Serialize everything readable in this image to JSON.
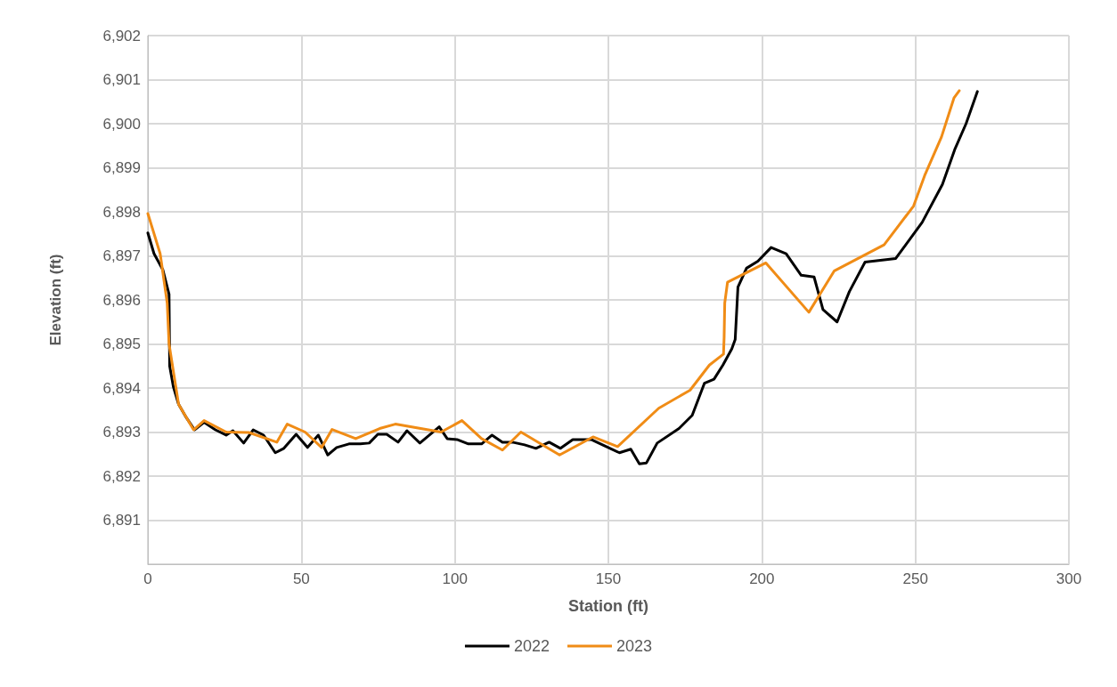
{
  "chart_data": {
    "type": "line",
    "xlabel": "Station (ft)",
    "ylabel": "Elevation (ft)",
    "xlim": [
      0,
      300
    ],
    "xticks": [
      0,
      50,
      100,
      150,
      200,
      250,
      300
    ],
    "ylim": [
      6890,
      6902
    ],
    "yticks": [
      {
        "value": 6890,
        "label": null
      },
      {
        "value": 6891,
        "label": "6,891"
      },
      {
        "value": 6892,
        "label": "6,892"
      },
      {
        "value": 6893,
        "label": "6,893"
      },
      {
        "value": 6894,
        "label": "6,894"
      },
      {
        "value": 6895,
        "label": "6,895"
      },
      {
        "value": 6896,
        "label": "6,896"
      },
      {
        "value": 6897,
        "label": "6,897"
      },
      {
        "value": 6898,
        "label": "6,898"
      },
      {
        "value": 6899,
        "label": "6,899"
      },
      {
        "value": 6900,
        "label": "6,900"
      },
      {
        "value": 6901,
        "label": "6,901"
      },
      {
        "value": 6902,
        "label": "6,902"
      }
    ],
    "grid": true,
    "legend": "bottom",
    "marker": "none",
    "line_style": "solid",
    "series": [
      {
        "name": "2022",
        "color": "#000000",
        "x": [
          0,
          2.0,
          4.9,
          6.9,
          7.1,
          8.3,
          10.0,
          12.6,
          15.2,
          18.3,
          22.0,
          25.5,
          27.7,
          31.2,
          34.3,
          37.7,
          41.5,
          44.3,
          48.3,
          52.0,
          55.5,
          58.6,
          61.5,
          65.5,
          69.2,
          72.1,
          74.9,
          77.8,
          81.5,
          84.4,
          88.6,
          94.9,
          97.5,
          100.7,
          104.4,
          108.7,
          112.1,
          115.5,
          118.7,
          122.7,
          126.4,
          130.7,
          134.4,
          138.4,
          144.4,
          148.7,
          153.6,
          157.3,
          160.1,
          162.4,
          165.9,
          173.0,
          177.3,
          181.3,
          184.4,
          187.3,
          190.2,
          191.3,
          192.2,
          195.0,
          198.7,
          203.0,
          207.9,
          212.8,
          217.0,
          219.9,
          224.5,
          228.5,
          233.6,
          243.6,
          252.2,
          258.8,
          262.8,
          266.5,
          270.2
        ],
        "values": [
          6897.52,
          6897.05,
          6896.68,
          6896.13,
          6894.5,
          6894.03,
          6893.63,
          6893.32,
          6893.05,
          6893.22,
          6893.05,
          6892.93,
          6893.03,
          6892.75,
          6893.05,
          6892.93,
          6892.53,
          6892.63,
          6892.95,
          6892.65,
          6892.93,
          6892.48,
          6892.65,
          6892.73,
          6892.73,
          6892.75,
          6892.95,
          6892.95,
          6892.77,
          6893.03,
          6892.75,
          6893.12,
          6892.85,
          6892.83,
          6892.73,
          6892.73,
          6892.93,
          6892.77,
          6892.77,
          6892.71,
          6892.63,
          6892.77,
          6892.63,
          6892.83,
          6892.83,
          6892.69,
          6892.53,
          6892.61,
          6892.28,
          6892.3,
          6892.75,
          6893.08,
          6893.38,
          6894.11,
          6894.2,
          6894.52,
          6894.89,
          6895.1,
          6896.29,
          6896.72,
          6896.88,
          6897.19,
          6897.05,
          6896.56,
          6896.52,
          6895.78,
          6895.5,
          6896.19,
          6896.86,
          6896.94,
          6897.76,
          6898.62,
          6899.41,
          6900.0,
          6900.73
        ]
      },
      {
        "name": "2023",
        "color": "#f08c16",
        "x": [
          0,
          4.0,
          6.3,
          6.9,
          10.0,
          14.9,
          18.3,
          25.5,
          32.9,
          42.0,
          45.4,
          51.2,
          56.6,
          60.0,
          67.7,
          75.5,
          80.6,
          95.5,
          102.3,
          108.7,
          115.5,
          121.5,
          134.1,
          145.0,
          153.0,
          166.4,
          176.6,
          182.9,
          187.5,
          187.7,
          187.9,
          188.8,
          201.3,
          215.3,
          223.6,
          239.8,
          249.4,
          253.0,
          258.5,
          262.6,
          264.3
        ],
        "values": [
          6897.96,
          6897.05,
          6895.93,
          6895.0,
          6893.63,
          6893.05,
          6893.26,
          6893.0,
          6892.99,
          6892.77,
          6893.18,
          6893.0,
          6892.65,
          6893.06,
          6892.85,
          6893.08,
          6893.18,
          6893.0,
          6893.26,
          6892.85,
          6892.59,
          6893.0,
          6892.48,
          6892.89,
          6892.67,
          6893.54,
          6893.95,
          6894.52,
          6894.77,
          6895.15,
          6895.93,
          6896.4,
          6896.84,
          6895.72,
          6896.66,
          6897.25,
          6898.13,
          6898.82,
          6899.7,
          6900.59,
          6900.75
        ]
      }
    ]
  }
}
